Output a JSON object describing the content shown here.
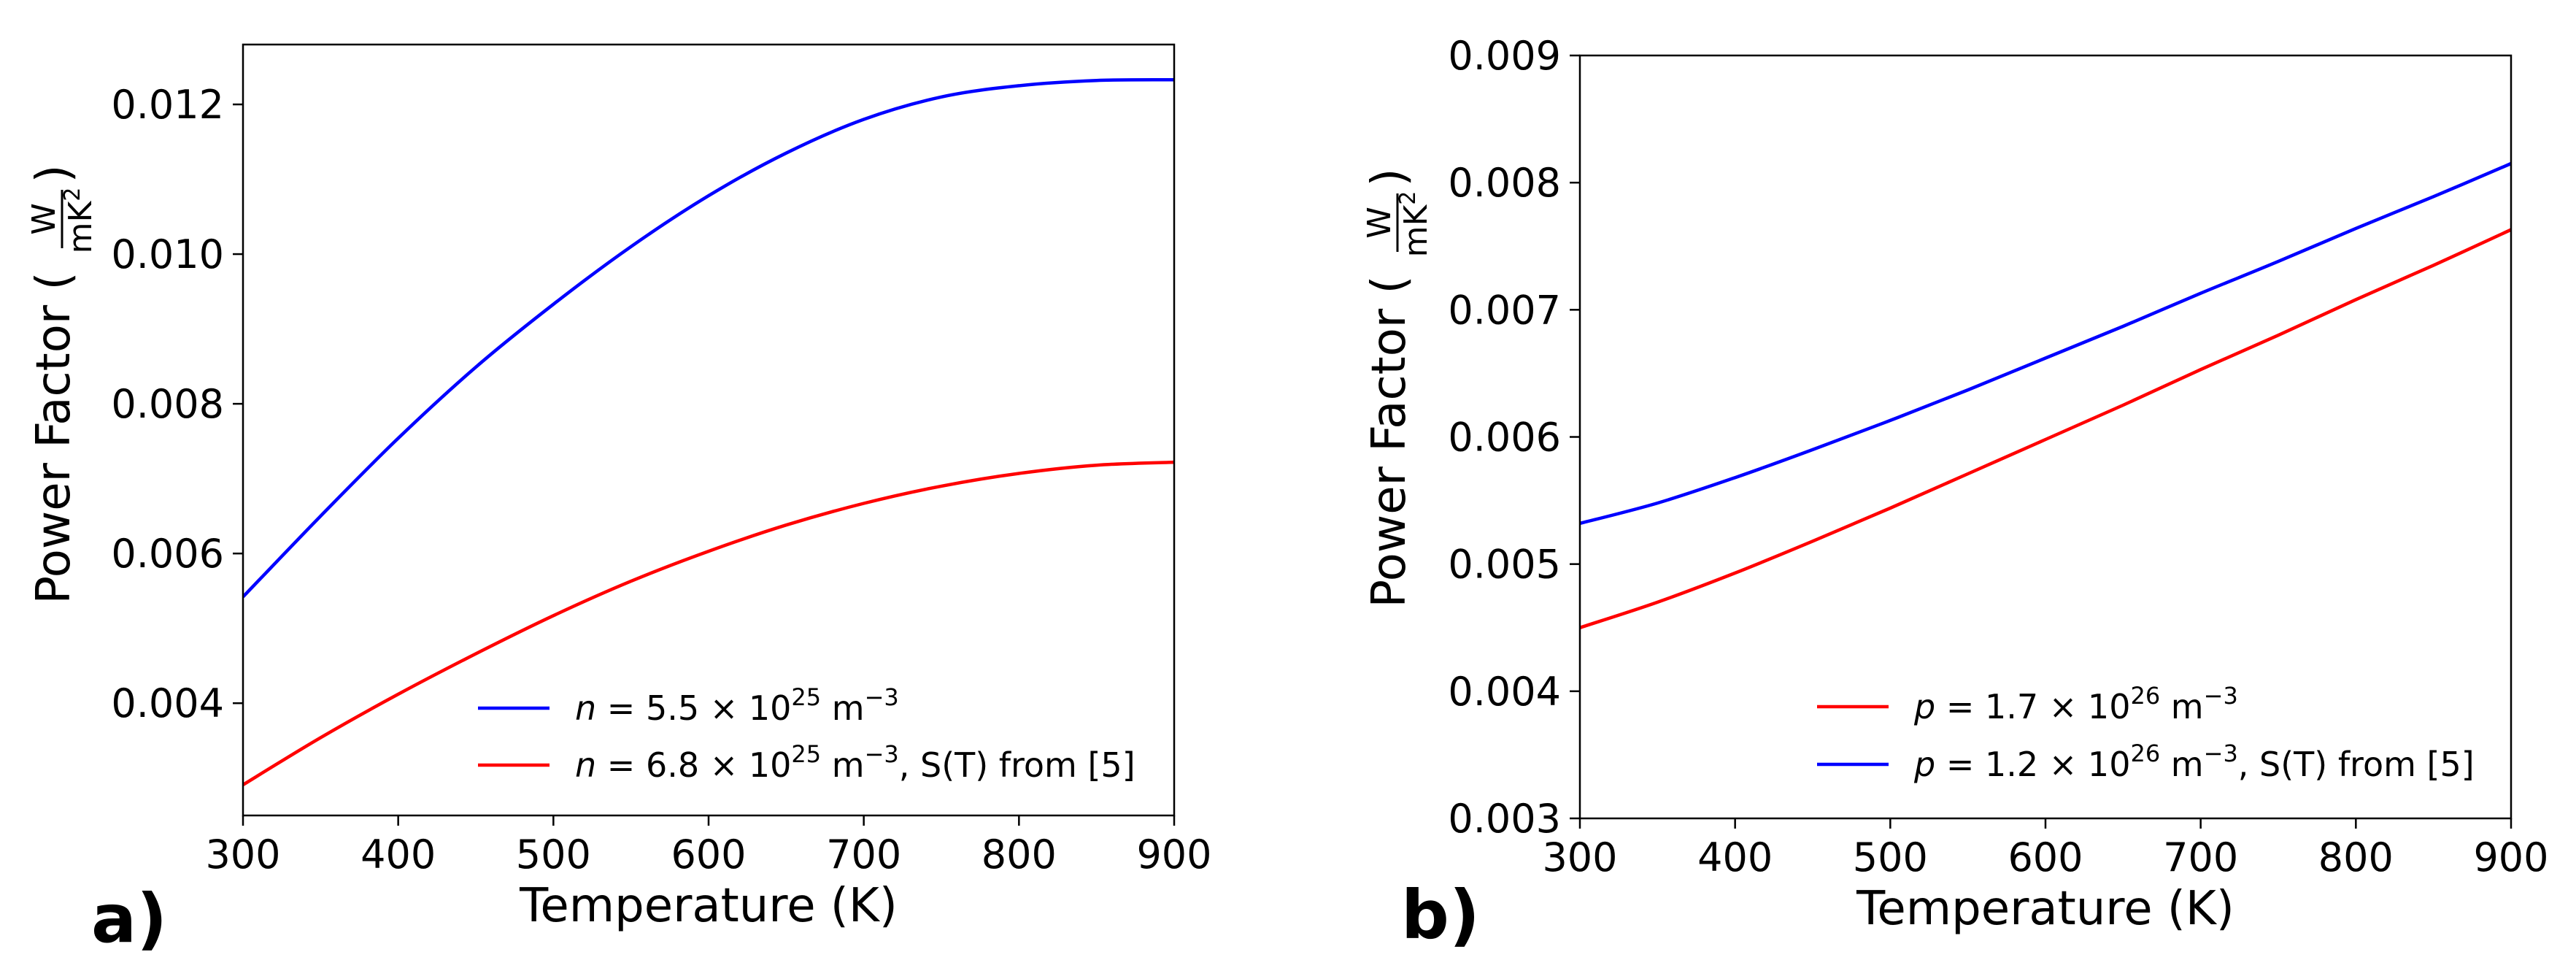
{
  "chart_data": [
    {
      "type": "line",
      "panel_label": "a)",
      "title": "",
      "xlabel": "Temperature (K)",
      "ylabel": "Power Factor (",
      "ylabel_unit_num": "W",
      "ylabel_unit_den": "mK",
      "ylabel_unit_den_sup": "2",
      "ylabel_close": ")",
      "xlim": [
        300,
        900
      ],
      "ylim": [
        0.0025,
        0.0128
      ],
      "xticks": [
        300,
        400,
        500,
        600,
        700,
        800,
        900
      ],
      "xtick_labels": [
        "300",
        "400",
        "500",
        "600",
        "700",
        "800",
        "900"
      ],
      "yticks": [
        0.004,
        0.006,
        0.008,
        0.01,
        0.012
      ],
      "ytick_labels": [
        "0.004",
        "0.006",
        "0.008",
        "0.010",
        "0.012"
      ],
      "grid": false,
      "legend_position": "lower-right",
      "series": [
        {
          "name": "n = 5.5 × 10^25 m^-3",
          "legend": {
            "var": "n",
            "eq": " = 5.5 × 10",
            "exp": "25",
            "unit": " m",
            "unit_exp": "−3",
            "suffix": ""
          },
          "color": "#0000ff",
          "x": [
            300,
            350,
            400,
            450,
            500,
            550,
            600,
            650,
            700,
            750,
            800,
            850,
            900
          ],
          "y": [
            0.00542,
            0.0065,
            0.00754,
            0.00849,
            0.00933,
            0.0101,
            0.01078,
            0.01135,
            0.0118,
            0.0121,
            0.01225,
            0.01232,
            0.01233
          ]
        },
        {
          "name": "n = 6.8 × 10^25 m^-3, S(T) from [5]",
          "legend": {
            "var": "n",
            "eq": " = 6.8 × 10",
            "exp": "25",
            "unit": " m",
            "unit_exp": "−3",
            "suffix": ", S(T) from [5]"
          },
          "color": "#ff0000",
          "x": [
            300,
            350,
            400,
            450,
            500,
            550,
            600,
            650,
            700,
            750,
            800,
            850,
            900
          ],
          "y": [
            0.00291,
            0.00354,
            0.00412,
            0.00466,
            0.00517,
            0.00563,
            0.00603,
            0.00638,
            0.00667,
            0.0069,
            0.00707,
            0.00718,
            0.00722
          ]
        }
      ]
    },
    {
      "type": "line",
      "panel_label": "b)",
      "title": "",
      "xlabel": "Temperature (K)",
      "ylabel": "Power Factor (",
      "ylabel_unit_num": "W",
      "ylabel_unit_den": "mK",
      "ylabel_unit_den_sup": "2",
      "ylabel_close": ")",
      "xlim": [
        300,
        900
      ],
      "ylim": [
        0.003,
        0.009
      ],
      "xticks": [
        300,
        400,
        500,
        600,
        700,
        800,
        900
      ],
      "xtick_labels": [
        "300",
        "400",
        "500",
        "600",
        "700",
        "800",
        "900"
      ],
      "yticks": [
        0.003,
        0.004,
        0.005,
        0.006,
        0.007,
        0.008,
        0.009
      ],
      "ytick_labels": [
        "0.003",
        "0.004",
        "0.005",
        "0.006",
        "0.007",
        "0.008",
        "0.009"
      ],
      "grid": false,
      "legend_position": "lower-right",
      "series": [
        {
          "name": "p = 1.7 × 10^26 m^-3",
          "legend": {
            "var": "p",
            "eq": " = 1.7 × 10",
            "exp": "26",
            "unit": " m",
            "unit_exp": "−3",
            "suffix": ""
          },
          "color": "#ff0000",
          "x": [
            300,
            350,
            400,
            450,
            500,
            550,
            600,
            650,
            700,
            750,
            800,
            850,
            900
          ],
          "y": [
            0.0045,
            0.0047,
            0.00493,
            0.00518,
            0.00544,
            0.00571,
            0.00598,
            0.00625,
            0.00653,
            0.0068,
            0.00708,
            0.00735,
            0.00763
          ]
        },
        {
          "name": "p = 1.2 × 10^26 m^-3, S(T) from [5]",
          "legend": {
            "var": "p",
            "eq": " = 1.2 × 10",
            "exp": "26",
            "unit": " m",
            "unit_exp": "−3",
            "suffix": ", S(T) from [5]"
          },
          "color": "#0000ff",
          "x": [
            300,
            350,
            400,
            450,
            500,
            550,
            600,
            650,
            700,
            750,
            800,
            850,
            900
          ],
          "y": [
            0.00532,
            0.00548,
            0.00568,
            0.0059,
            0.00613,
            0.00637,
            0.00662,
            0.00687,
            0.00713,
            0.00738,
            0.00764,
            0.00789,
            0.00815
          ]
        }
      ]
    }
  ]
}
